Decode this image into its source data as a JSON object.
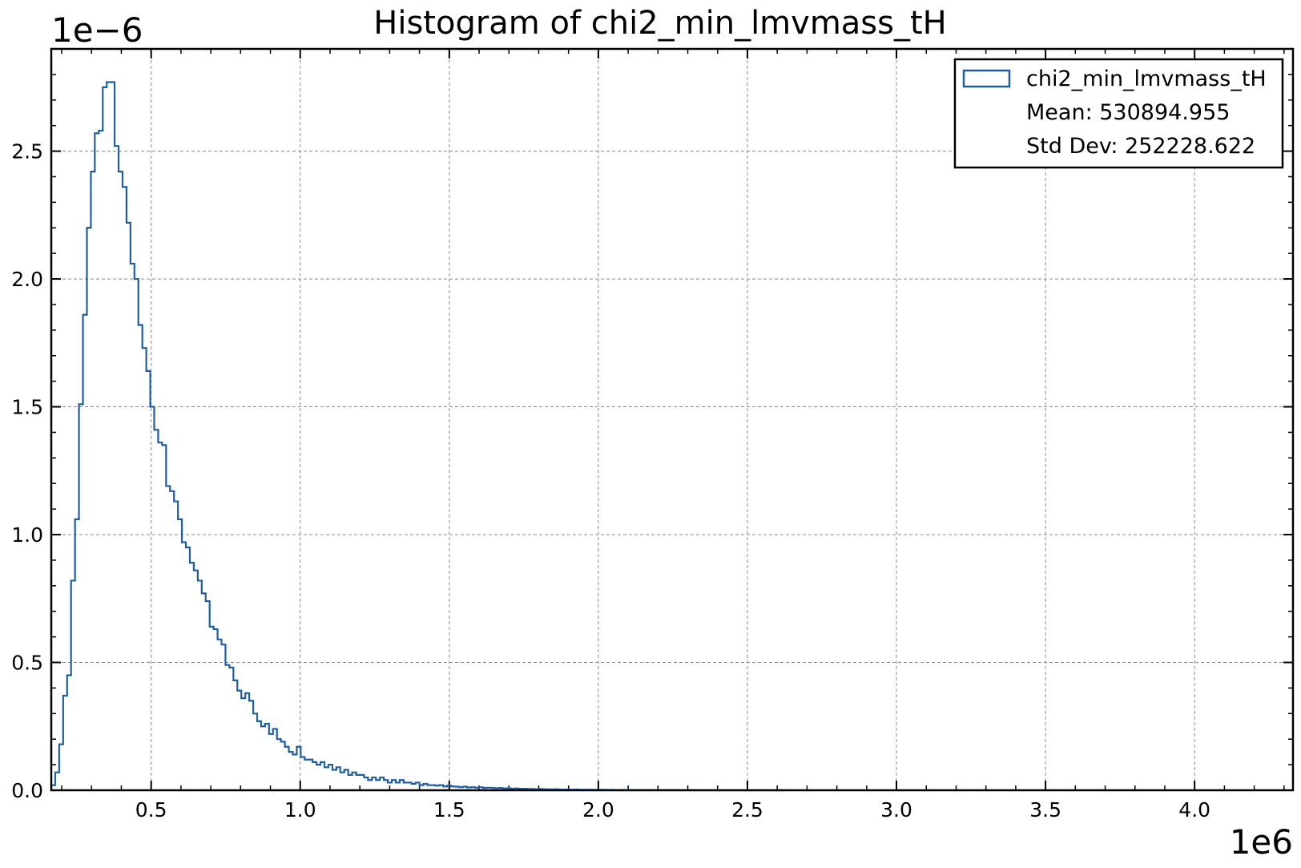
{
  "chart_data": {
    "type": "histogram",
    "title": "Histogram of chi2_min_lmvmass_tH",
    "x_offset_label": "1e6",
    "y_offset_label": "1e−6",
    "x_scale": 1000000,
    "y_scale": 1e-06,
    "xlim": [
      0.165,
      4.33
    ],
    "ylim": [
      0,
      2.9
    ],
    "x_ticks": [
      "0.5",
      "1.0",
      "1.5",
      "2.0",
      "2.5",
      "3.0",
      "3.5",
      "4.0"
    ],
    "x_tick_values": [
      0.5,
      1.0,
      1.5,
      2.0,
      2.5,
      3.0,
      3.5,
      4.0
    ],
    "y_ticks": [
      "0.0",
      "0.5",
      "1.0",
      "1.5",
      "2.0",
      "2.5"
    ],
    "y_tick_values": [
      0.0,
      0.5,
      1.0,
      1.5,
      2.0,
      2.5
    ],
    "grid": true,
    "legend": {
      "placement": "top-right",
      "entries": [
        "chi2_min_lmvmass_tH",
        "Mean: 530894.955",
        "Std Dev: 252228.622"
      ]
    },
    "series": [
      {
        "name": "chi2_min_lmvmass_tH",
        "color": "#1f5fa0",
        "bin_start": 0.165,
        "bin_width": 0.01328,
        "values": [
          0.02,
          0.07,
          0.18,
          0.37,
          0.45,
          0.82,
          1.06,
          1.51,
          1.86,
          2.2,
          2.42,
          2.57,
          2.58,
          2.75,
          2.77,
          2.77,
          2.52,
          2.42,
          2.36,
          2.22,
          2.06,
          2.0,
          1.82,
          1.73,
          1.64,
          1.5,
          1.41,
          1.36,
          1.35,
          1.19,
          1.17,
          1.13,
          1.06,
          0.97,
          0.95,
          0.89,
          0.86,
          0.82,
          0.77,
          0.74,
          0.64,
          0.63,
          0.59,
          0.57,
          0.49,
          0.48,
          0.43,
          0.39,
          0.36,
          0.38,
          0.35,
          0.3,
          0.27,
          0.25,
          0.26,
          0.22,
          0.24,
          0.2,
          0.19,
          0.17,
          0.15,
          0.14,
          0.17,
          0.13,
          0.12,
          0.12,
          0.11,
          0.1,
          0.11,
          0.09,
          0.1,
          0.08,
          0.09,
          0.07,
          0.08,
          0.06,
          0.07,
          0.06,
          0.06,
          0.05,
          0.04,
          0.05,
          0.04,
          0.05,
          0.04,
          0.03,
          0.04,
          0.03,
          0.04,
          0.03,
          0.03,
          0.025,
          0.03,
          0.02,
          0.025,
          0.02,
          0.02,
          0.018,
          0.02,
          0.015,
          0.018,
          0.015,
          0.014,
          0.012,
          0.014,
          0.011,
          0.012,
          0.01,
          0.012,
          0.009,
          0.01,
          0.009,
          0.008,
          0.009,
          0.007,
          0.008,
          0.006,
          0.007,
          0.006,
          0.006,
          0.005,
          0.005,
          0.004,
          0.005,
          0.004,
          0.004,
          0.003,
          0.004,
          0.003,
          0.003,
          0.003,
          0.002,
          0.003,
          0.002,
          0.002,
          0.002,
          0.002,
          0.0015,
          0.002,
          0.0015,
          0.0012,
          0.0015,
          0.001,
          0.0012,
          0.001,
          0.001,
          0.0008,
          0.001,
          0.0008,
          0.0007,
          0.0008,
          0.0006,
          0.0007,
          0.0005,
          0.0006,
          0.0005,
          0.0004,
          0.0005,
          0.0004,
          0.0003,
          0.0004,
          0.0003,
          0.0003,
          0.0002,
          0.0003,
          0.0002,
          0.0002,
          0.0002,
          0.0001,
          0.0002,
          0.0001,
          0.0001,
          0.0001,
          0.0001,
          0.0001,
          5e-05,
          0.0001,
          5e-05,
          5e-05,
          5e-05,
          5e-05,
          5e-05,
          5e-05,
          3e-05,
          3e-05
        ]
      }
    ]
  }
}
